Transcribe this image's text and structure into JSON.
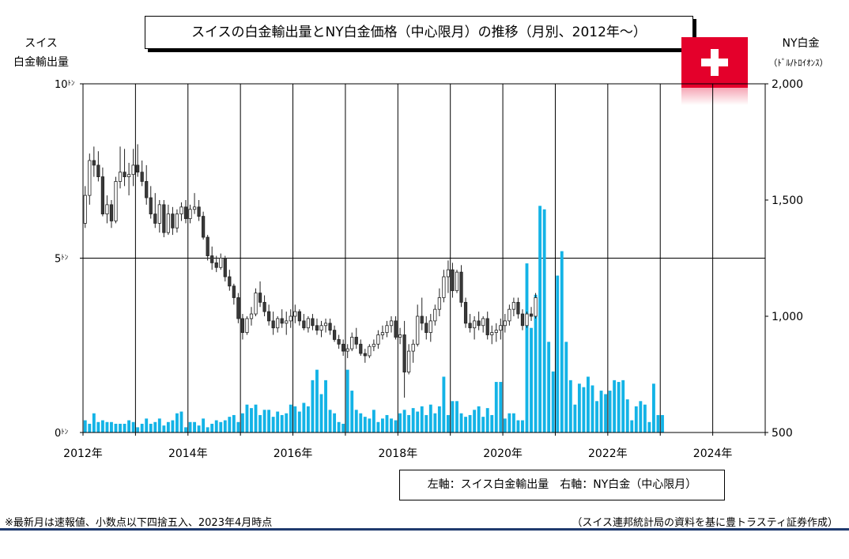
{
  "title": "スイスの白金輸出量とNY白金価格（中心限月）の推移（月別、2012年～）",
  "left_axis": {
    "title_line1": "スイス",
    "title_line2": "白金輸出量"
  },
  "right_axis": {
    "title": "NY白金",
    "unit": "（ﾄﾞﾙ/ﾄﾛｲｵﾝｽ）"
  },
  "legend": "左軸：スイス白金輸出量　右軸：NY白金（中心限月）",
  "footnote_left": "※最新月は速報値、小数点以下四捨五入、2023年4月時点",
  "footnote_right": "（スイス連邦統計局の資料を基に豊トラスティ証券作成）",
  "flag_icon": "swiss-flag-icon",
  "colors": {
    "bar": "#13b3e6",
    "candle_up": "#ffffff",
    "candle_down": "#3a3a3a",
    "flag": "#e4002b",
    "rule": "#1f3a6e"
  },
  "chart_data": {
    "type": "bar+candlestick",
    "x_start": "2012-01",
    "x_end": "2025-01",
    "x_ticks": [
      "2012年",
      "2014年",
      "2016年",
      "2018年",
      "2020年",
      "2022年",
      "2024年"
    ],
    "y_left": {
      "ticks": [
        "0",
        "5",
        "10"
      ],
      "tick_suffix": "ﾄﾝ",
      "ylim": [
        0,
        10
      ]
    },
    "y_right": {
      "ticks": [
        "500",
        "1,000",
        "1,500",
        "2,000"
      ],
      "ylim": [
        500,
        2000
      ]
    },
    "export_series": [
      0.35,
      0.25,
      0.55,
      0.3,
      0.35,
      0.3,
      0.3,
      0.25,
      0.25,
      0.25,
      0.35,
      0.3,
      0.15,
      0.25,
      0.4,
      0.25,
      0.3,
      0.4,
      0.2,
      0.3,
      0.35,
      0.55,
      0.6,
      0.15,
      0.3,
      0.3,
      0.2,
      0.4,
      0.15,
      0.25,
      0.35,
      0.3,
      0.35,
      0.45,
      0.5,
      0.3,
      0.55,
      0.8,
      0.7,
      0.8,
      0.5,
      0.65,
      0.65,
      0.45,
      0.6,
      0.5,
      0.55,
      0.8,
      0.75,
      0.6,
      0.85,
      0.75,
      1.5,
      1.8,
      1.1,
      1.5,
      0.65,
      0.55,
      0.3,
      0.25,
      1.8,
      1.2,
      0.65,
      0.55,
      0.45,
      0.4,
      0.65,
      0.3,
      0.4,
      0.5,
      0.4,
      0.35,
      0.55,
      0.65,
      0.5,
      0.7,
      0.6,
      0.75,
      0.5,
      0.8,
      0.55,
      0.75,
      1.6,
      0.5,
      0.9,
      0.9,
      0.55,
      0.45,
      0.5,
      0.65,
      0.75,
      0.45,
      0.7,
      0.5,
      1.45,
      1.45,
      0.4,
      0.55,
      0.55,
      0.35,
      0.35,
      4.85,
      3.0,
      3.95,
      6.5,
      6.4,
      2.6,
      1.75,
      4.5,
      5.2,
      2.6,
      1.5,
      0.8,
      1.4,
      1.3,
      1.6,
      1.35,
      0.9,
      1.2,
      1.1,
      1.2,
      1.5,
      1.45,
      1.5,
      0.95,
      0.35,
      0.75,
      0.9,
      0.8,
      0.3,
      1.4,
      0.5,
      0.5
    ],
    "price_series": [
      [
        1400,
        1560,
        1380,
        1520
      ],
      [
        1520,
        1700,
        1480,
        1670
      ],
      [
        1670,
        1730,
        1600,
        1650
      ],
      [
        1650,
        1710,
        1580,
        1600
      ],
      [
        1600,
        1640,
        1430,
        1440
      ],
      [
        1440,
        1520,
        1400,
        1480
      ],
      [
        1480,
        1500,
        1380,
        1410
      ],
      [
        1410,
        1600,
        1400,
        1580
      ],
      [
        1580,
        1730,
        1550,
        1620
      ],
      [
        1620,
        1720,
        1560,
        1600
      ],
      [
        1600,
        1660,
        1520,
        1610
      ],
      [
        1610,
        1720,
        1560,
        1650
      ],
      [
        1650,
        1740,
        1600,
        1620
      ],
      [
        1620,
        1670,
        1560,
        1580
      ],
      [
        1580,
        1650,
        1480,
        1510
      ],
      [
        1510,
        1560,
        1420,
        1440
      ],
      [
        1440,
        1530,
        1380,
        1400
      ],
      [
        1400,
        1500,
        1360,
        1480
      ],
      [
        1480,
        1500,
        1340,
        1360
      ],
      [
        1360,
        1480,
        1350,
        1440
      ],
      [
        1440,
        1470,
        1350,
        1380
      ],
      [
        1380,
        1460,
        1360,
        1440
      ],
      [
        1440,
        1490,
        1410,
        1470
      ],
      [
        1470,
        1500,
        1400,
        1420
      ],
      [
        1420,
        1480,
        1400,
        1460
      ],
      [
        1460,
        1530,
        1440,
        1470
      ],
      [
        1470,
        1500,
        1410,
        1430
      ],
      [
        1430,
        1450,
        1330,
        1340
      ],
      [
        1340,
        1350,
        1240,
        1260
      ],
      [
        1260,
        1300,
        1200,
        1230
      ],
      [
        1230,
        1260,
        1190,
        1210
      ],
      [
        1210,
        1270,
        1200,
        1250
      ],
      [
        1250,
        1260,
        1150,
        1170
      ],
      [
        1170,
        1200,
        1110,
        1130
      ],
      [
        1130,
        1140,
        1050,
        1080
      ],
      [
        1080,
        1100,
        970,
        990
      ],
      [
        990,
        1010,
        900,
        930
      ],
      [
        930,
        1000,
        920,
        990
      ],
      [
        990,
        1040,
        960,
        1010
      ],
      [
        1010,
        1120,
        1000,
        1100
      ],
      [
        1100,
        1150,
        1040,
        1060
      ],
      [
        1060,
        1090,
        1000,
        1020
      ],
      [
        1020,
        1050,
        960,
        980
      ],
      [
        980,
        1020,
        920,
        950
      ],
      [
        950,
        1000,
        930,
        990
      ],
      [
        990,
        1030,
        950,
        970
      ],
      [
        970,
        1020,
        920,
        980
      ],
      [
        980,
        1030,
        950,
        1000
      ],
      [
        1000,
        1050,
        970,
        1020
      ],
      [
        1020,
        1030,
        960,
        980
      ],
      [
        980,
        1010,
        940,
        950
      ],
      [
        950,
        1000,
        930,
        990
      ],
      [
        990,
        1010,
        940,
        960
      ],
      [
        960,
        990,
        920,
        940
      ],
      [
        940,
        980,
        910,
        960
      ],
      [
        960,
        990,
        930,
        970
      ],
      [
        970,
        990,
        920,
        940
      ],
      [
        940,
        960,
        890,
        900
      ],
      [
        900,
        920,
        860,
        880
      ],
      [
        880,
        900,
        830,
        850
      ],
      [
        850,
        880,
        820,
        860
      ],
      [
        860,
        930,
        850,
        910
      ],
      [
        910,
        950,
        860,
        880
      ],
      [
        880,
        900,
        830,
        840
      ],
      [
        840,
        860,
        800,
        830
      ],
      [
        830,
        880,
        820,
        870
      ],
      [
        870,
        900,
        850,
        880
      ],
      [
        880,
        940,
        860,
        920
      ],
      [
        920,
        960,
        900,
        930
      ],
      [
        930,
        980,
        910,
        960
      ],
      [
        960,
        1000,
        930,
        980
      ],
      [
        980,
        1000,
        900,
        910
      ],
      [
        910,
        950,
        880,
        920
      ],
      [
        920,
        980,
        650,
        760
      ],
      [
        760,
        880,
        750,
        850
      ],
      [
        850,
        900,
        800,
        880
      ],
      [
        880,
        1050,
        870,
        1000
      ],
      [
        1000,
        1080,
        940,
        970
      ],
      [
        970,
        1000,
        900,
        930
      ],
      [
        930,
        1010,
        890,
        980
      ],
      [
        980,
        1050,
        960,
        1030
      ],
      [
        1030,
        1120,
        1000,
        1080
      ],
      [
        1080,
        1200,
        1060,
        1170
      ],
      [
        1170,
        1240,
        1100,
        1200
      ],
      [
        1200,
        1230,
        1080,
        1110
      ],
      [
        1110,
        1200,
        1100,
        1190
      ],
      [
        1190,
        1220,
        1040,
        1060
      ],
      [
        1060,
        1080,
        950,
        970
      ],
      [
        970,
        1010,
        930,
        950
      ],
      [
        950,
        1000,
        900,
        980
      ],
      [
        980,
        1020,
        940,
        960
      ],
      [
        960,
        1000,
        930,
        990
      ],
      [
        990,
        1020,
        900,
        920
      ],
      [
        920,
        960,
        880,
        930
      ],
      [
        930,
        970,
        890,
        940
      ],
      [
        940,
        990,
        900,
        960
      ],
      [
        960,
        1010,
        930,
        980
      ],
      [
        980,
        1050,
        960,
        1030
      ],
      [
        1030,
        1080,
        1000,
        1060
      ],
      [
        1060,
        1080,
        990,
        1010
      ],
      [
        1010,
        1030,
        940,
        960
      ],
      [
        960,
        1020,
        950,
        1010
      ],
      [
        1010,
        1040,
        980,
        1000
      ],
      [
        1000,
        1100,
        990,
        1080
      ]
    ]
  }
}
